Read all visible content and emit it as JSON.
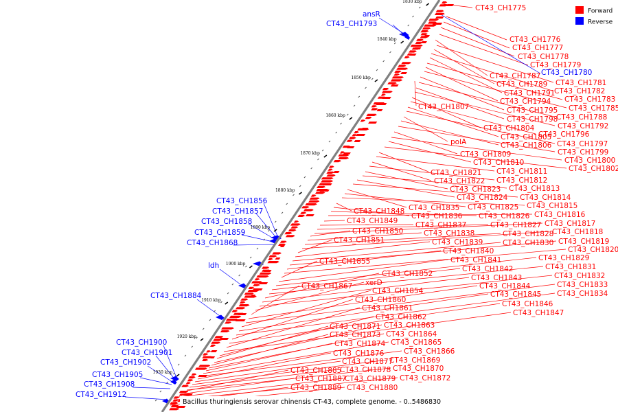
{
  "colors": {
    "forward": "#ff0000",
    "reverse": "#0000ff",
    "axis": "#808080"
  },
  "legend": [
    {
      "name": "Forward",
      "color": "#ff0000"
    },
    {
      "name": "Reverse",
      "color": "#0000ff"
    }
  ],
  "footer": "Bacillus thuringiensis serovar chinensis CT-43, complete genome. - 0..5486830",
  "ticks": [
    "1830 kbp",
    "1840 kbp",
    "1850 kbp",
    "1860 kbp",
    "1870 kbp",
    "1880 kbp",
    "1890 kbp",
    "1900 kbp",
    "1910 kbp",
    "1920 kbp",
    "1930 kbp"
  ],
  "forward_labels": [
    "CT43_CH1775",
    "CT43_CH1776",
    "CT43_CH1777",
    "CT43_CH1778",
    "CT43_CH1779",
    "CT43_CH1787",
    "CT43_CH1781",
    "CT43_CH1789",
    "CT43_CH1782",
    "CT43_CH1791",
    "CT43_CH1783",
    "CT43_CH1794",
    "CT43_CH1785",
    "CT43_CH1807",
    "CT43_CH1795",
    "CT43_CH1788",
    "CT43_CH1798",
    "CT43_CH1792",
    "CT43_CH1804",
    "CT43_CH1796",
    "CT43_CH1805",
    "CT43_CH1797",
    "polA",
    "CT43_CH1806",
    "CT43_CH1799",
    "CT43_CH1809",
    "CT43_CH1800",
    "CT43_CH1810",
    "CT43_CH1802",
    "CT43_CH1821",
    "CT43_CH1811",
    "CT43_CH1822",
    "CT43_CH1812",
    "CT43_CH1823",
    "CT43_CH1813",
    "CT43_CH1824",
    "CT43_CH1814",
    "CT43_CH1835",
    "CT43_CH1825",
    "CT43_CH1815",
    "CT43_CH1848",
    "CT43_CH1836",
    "CT43_CH1826",
    "CT43_CH1816",
    "CT43_CH1849",
    "CT43_CH1837",
    "CT43_CH1827",
    "CT43_CH1817",
    "CT43_CH1850",
    "CT43_CH1838",
    "CT43_CH1828",
    "CT43_CH1818",
    "CT43_CH1851",
    "CT43_CH1839",
    "CT43_CH1830",
    "CT43_CH1819",
    "CT43_CH1840",
    "CT43_CH1820",
    "CT43_CH1855",
    "CT43_CH1841",
    "CT43_CH1829",
    "CT43_CH1842",
    "CT43_CH1831",
    "CT43_CH1852",
    "CT43_CH1843",
    "CT43_CH1832",
    "xerD",
    "CT43_CH1867",
    "CT43_CH1844",
    "CT43_CH1833",
    "CT43_CH1854",
    "CT43_CH1845",
    "CT43_CH1834",
    "CT43_CH1860",
    "CT43_CH1846",
    "CT43_CH1861",
    "CT43_CH1847",
    "CT43_CH1862",
    "CT43_CH1871",
    "CT43_CH1863",
    "CT43_CH1873",
    "CT43_CH1864",
    "CT43_CH1874",
    "CT43_CH1865",
    "CT43_CH1866",
    "CT43_CH1876",
    "CT43_CH1877",
    "CT43_CH1869",
    "CT43_CH1878",
    "CT43_CH1870",
    "CT43_CH1885",
    "CT43_CH1887",
    "CT43_CH1879",
    "CT43_CH1872",
    "CT43_CH1889",
    "CT43_CH1880"
  ],
  "reverse_labels": [
    "ansR",
    "CT43_CH1793",
    "CT43_CH1780",
    "CT43_CH1856",
    "CT43_CH1857",
    "CT43_CH1858",
    "CT43_CH1859",
    "CT43_CH1868",
    "ldh",
    "CT43_CH1884",
    "CT43_CH1900",
    "CT43_CH1901",
    "CT43_CH1902",
    "CT43_CH1905",
    "CT43_CH1908",
    "CT43_CH1912"
  ]
}
